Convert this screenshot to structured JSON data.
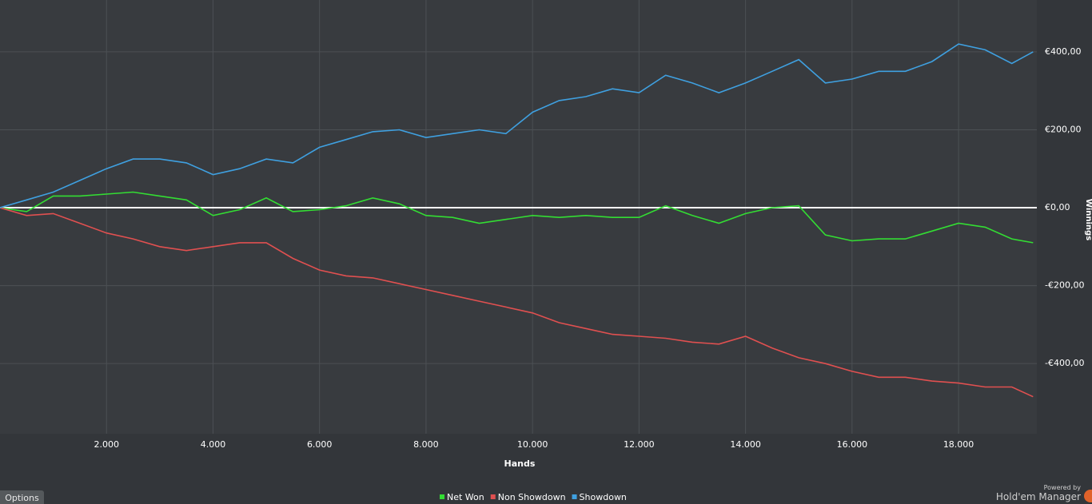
{
  "chart_data": {
    "type": "line",
    "x_label": "Hands",
    "y_label": "Winnings",
    "x": [
      0,
      500,
      1000,
      1500,
      2000,
      2500,
      3000,
      3500,
      4000,
      4500,
      5000,
      5500,
      6000,
      6500,
      7000,
      7500,
      8000,
      8500,
      9000,
      9500,
      10000,
      10500,
      11000,
      11500,
      12000,
      12500,
      13000,
      13500,
      14000,
      14500,
      15000,
      15500,
      16000,
      16500,
      17000,
      17500,
      18000,
      18500,
      19000,
      19400
    ],
    "series": [
      {
        "name": "Net Won",
        "color": "#33dd33",
        "values": [
          0,
          -10,
          30,
          30,
          35,
          40,
          30,
          20,
          -20,
          -5,
          25,
          -10,
          -5,
          5,
          25,
          10,
          -20,
          -25,
          -40,
          -30,
          -20,
          -25,
          -20,
          -25,
          -25,
          5,
          -20,
          -40,
          -15,
          0,
          5,
          -70,
          -85,
          -80,
          -80,
          -60,
          -40,
          -50,
          -80,
          -90
        ]
      },
      {
        "name": "Non Showdown",
        "color": "#e05050",
        "values": [
          0,
          -20,
          -15,
          -40,
          -65,
          -80,
          -100,
          -110,
          -100,
          -90,
          -90,
          -130,
          -160,
          -175,
          -180,
          -195,
          -210,
          -225,
          -240,
          -255,
          -270,
          -295,
          -310,
          -325,
          -330,
          -335,
          -345,
          -350,
          -330,
          -360,
          -385,
          -400,
          -420,
          -435,
          -435,
          -445,
          -450,
          -460,
          -460,
          -485
        ]
      },
      {
        "name": "Showdown",
        "color": "#3fa0e0",
        "values": [
          0,
          20,
          40,
          70,
          100,
          125,
          125,
          115,
          85,
          100,
          125,
          115,
          155,
          175,
          195,
          200,
          180,
          190,
          200,
          190,
          245,
          275,
          285,
          305,
          295,
          340,
          320,
          295,
          320,
          350,
          380,
          320,
          330,
          350,
          350,
          375,
          420,
          405,
          370,
          400
        ]
      }
    ],
    "xlim": [
      0,
      19470
    ],
    "ylim": [
      -580,
      533
    ],
    "xticks": [
      {
        "value": 2000,
        "label": "2.000"
      },
      {
        "value": 4000,
        "label": "4.000"
      },
      {
        "value": 6000,
        "label": "6.000"
      },
      {
        "value": 8000,
        "label": "8.000"
      },
      {
        "value": 10000,
        "label": "10.000"
      },
      {
        "value": 12000,
        "label": "12.000"
      },
      {
        "value": 14000,
        "label": "14.000"
      },
      {
        "value": 16000,
        "label": "16.000"
      },
      {
        "value": 18000,
        "label": "18.000"
      }
    ],
    "yticks": [
      {
        "value": 400,
        "label": "€400,00"
      },
      {
        "value": 200,
        "label": "€200,00"
      },
      {
        "value": 0,
        "label": "€0,00"
      },
      {
        "value": -200,
        "label": "-€200,00"
      },
      {
        "value": -400,
        "label": "-€400,00"
      }
    ],
    "grid": true
  },
  "ui": {
    "options": "Options",
    "powered_by": "Powered by",
    "brand": "Hold'em Manager"
  }
}
